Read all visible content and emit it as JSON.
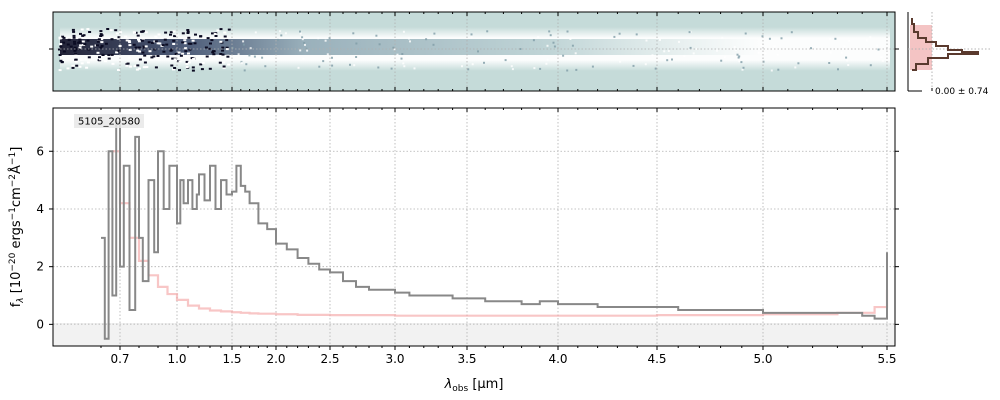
{
  "chart_data": [
    {
      "panel": "2d-spectrum",
      "type": "heatmap",
      "description_colors": {
        "background": "#c5dbd9",
        "dark": "#0b0b22",
        "mid": "#5a7c8a",
        "light": "#ffffff"
      },
      "grid": true
    },
    {
      "panel": "1d-spectrum",
      "type": "line",
      "label": "5105_20580",
      "xlabel_prefix": "λ",
      "xlabel_sub": "obs",
      "xlabel_suffix": " [μm]",
      "ylabel": "f_λ [10^-20 ergs^-1cm^-2Å^-1]",
      "x_ticks": [
        "0.7",
        "1.0",
        "1.5",
        "2.0",
        "2.5",
        "3.0",
        "3.5",
        "4.0",
        "4.5",
        "5.0",
        "5.5"
      ],
      "y_ticks": [
        "0",
        "2",
        "4",
        "6"
      ],
      "xlim": [
        0.59,
        5.52
      ],
      "ylim": [
        -0.75,
        7.5
      ],
      "grid": true,
      "series": [
        {
          "color": "#888888",
          "x": [
            0.6,
            0.62,
            0.64,
            0.66,
            0.68,
            0.7,
            0.72,
            0.75,
            0.78,
            0.8,
            0.82,
            0.85,
            0.88,
            0.9,
            0.93,
            0.96,
            1.0,
            1.03,
            1.06,
            1.1,
            1.14,
            1.18,
            1.2,
            1.25,
            1.3,
            1.35,
            1.4,
            1.45,
            1.5,
            1.55,
            1.6,
            1.65,
            1.7,
            1.8,
            1.9,
            2.0,
            2.1,
            2.2,
            2.3,
            2.4,
            2.5,
            2.6,
            2.7,
            2.8,
            2.9,
            3.0,
            3.1,
            3.2,
            3.3,
            3.4,
            3.5,
            3.6,
            3.7,
            3.8,
            3.9,
            4.0,
            4.1,
            4.2,
            4.3,
            4.4,
            4.5,
            4.6,
            4.7,
            4.8,
            4.9,
            5.0,
            5.1,
            5.2,
            5.3,
            5.4,
            5.45,
            5.5
          ],
          "y": [
            3.0,
            -0.5,
            6.0,
            1.0,
            7.0,
            2.0,
            5.5,
            0.5,
            6.5,
            3.0,
            1.5,
            5.0,
            2.5,
            6.0,
            4.0,
            5.5,
            3.5,
            5.0,
            4.2,
            5.0,
            4.0,
            4.5,
            5.2,
            4.3,
            5.5,
            4.0,
            5.0,
            4.5,
            4.6,
            5.5,
            4.8,
            4.6,
            4.2,
            3.5,
            3.3,
            2.8,
            2.6,
            2.3,
            2.1,
            1.9,
            1.8,
            1.5,
            1.3,
            1.2,
            1.2,
            1.1,
            1.0,
            1.0,
            1.0,
            0.9,
            0.9,
            0.8,
            0.8,
            0.7,
            0.8,
            0.7,
            0.7,
            0.6,
            0.6,
            0.6,
            0.6,
            0.5,
            0.5,
            0.5,
            0.5,
            0.4,
            0.4,
            0.4,
            0.4,
            0.3,
            0.2,
            2.5
          ]
        },
        {
          "color": "#f4a0a0",
          "x": [
            0.66,
            0.7,
            0.75,
            0.8,
            0.85,
            0.9,
            0.95,
            1.0,
            1.1,
            1.2,
            1.3,
            1.4,
            1.5,
            1.6,
            1.7,
            1.8,
            2.0,
            2.2,
            2.5,
            3.0,
            3.5,
            4.0,
            4.5,
            5.0,
            5.3,
            5.45,
            5.5
          ],
          "y": [
            6.0,
            4.2,
            3.0,
            2.2,
            1.7,
            1.3,
            1.05,
            0.85,
            0.65,
            0.55,
            0.48,
            0.45,
            0.42,
            0.4,
            0.38,
            0.37,
            0.35,
            0.33,
            0.32,
            0.3,
            0.3,
            0.3,
            0.32,
            0.35,
            0.4,
            0.6,
            1.2
          ]
        }
      ]
    },
    {
      "panel": "spatial-profile",
      "type": "line",
      "annotation": "0.00 ± 0.74"
    }
  ]
}
